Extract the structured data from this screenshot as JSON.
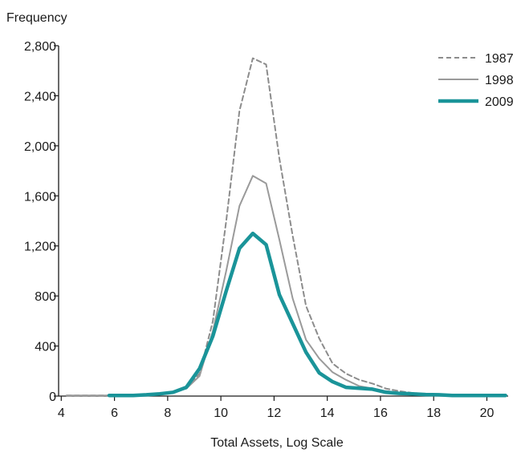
{
  "chart_data": {
    "type": "line",
    "ylabel": "Frequency",
    "xlabel": "Total Assets, Log Scale",
    "xlim": [
      3.9,
      20.8
    ],
    "ylim": [
      0,
      2800
    ],
    "x_ticks": [
      4,
      6,
      8,
      10,
      12,
      14,
      16,
      18,
      20
    ],
    "x_tick_labels": [
      "4",
      "6",
      "8",
      "10",
      "12",
      "14",
      "16",
      "18",
      "20"
    ],
    "y_ticks": [
      0,
      400,
      800,
      1200,
      1600,
      2000,
      2400,
      2800
    ],
    "y_tick_labels": [
      "0",
      "400",
      "800",
      "1,200",
      "1,600",
      "2,000",
      "2,400",
      "2,800"
    ],
    "grid": false,
    "legend": {
      "position": "top-right"
    },
    "series": [
      {
        "name": "1987",
        "style": "dashed",
        "color": "#8c8c8c",
        "x": [
          4.2,
          4.7,
          5.2,
          5.7,
          6.2,
          6.7,
          7.2,
          7.7,
          8.2,
          8.7,
          9.2,
          9.7,
          10.2,
          10.7,
          11.2,
          11.7,
          12.2,
          12.7,
          13.2,
          13.7,
          14.2,
          14.7,
          15.2,
          15.7,
          16.2,
          16.7,
          17.2,
          17.7,
          18.2,
          18.7,
          19.2,
          19.7,
          20.2,
          20.7
        ],
        "y": [
          5,
          5,
          5,
          5,
          5,
          5,
          10,
          15,
          30,
          60,
          180,
          600,
          1400,
          2280,
          2700,
          2650,
          1900,
          1280,
          720,
          460,
          260,
          180,
          130,
          100,
          60,
          40,
          25,
          18,
          12,
          8,
          5,
          5,
          5,
          5
        ]
      },
      {
        "name": "1998",
        "style": "solid",
        "color": "#9a9a9a",
        "x": [
          4.2,
          4.7,
          5.2,
          5.7,
          6.2,
          6.7,
          7.2,
          7.7,
          8.2,
          8.7,
          9.2,
          9.7,
          10.2,
          10.7,
          11.2,
          11.7,
          12.2,
          12.7,
          13.2,
          13.7,
          14.2,
          14.7,
          15.2,
          15.7,
          16.2,
          16.7,
          17.2,
          17.7,
          18.2,
          18.7,
          19.2,
          19.7,
          20.2,
          20.7
        ],
        "y": [
          5,
          5,
          5,
          5,
          5,
          5,
          10,
          15,
          30,
          60,
          160,
          520,
          1000,
          1520,
          1760,
          1700,
          1250,
          780,
          450,
          300,
          190,
          130,
          80,
          60,
          40,
          28,
          20,
          15,
          10,
          6,
          5,
          5,
          5,
          5
        ]
      },
      {
        "name": "2009",
        "style": "thick",
        "color": "#1a9499",
        "x": [
          5.8,
          6.2,
          6.7,
          7.2,
          7.7,
          8.2,
          8.7,
          9.2,
          9.7,
          10.2,
          10.7,
          11.2,
          11.7,
          12.2,
          12.7,
          13.2,
          13.7,
          14.2,
          14.7,
          15.2,
          15.7,
          16.2,
          16.7,
          17.2,
          17.7,
          18.2,
          18.7,
          19.2,
          19.7,
          20.2,
          20.7
        ],
        "y": [
          5,
          5,
          5,
          10,
          18,
          30,
          70,
          220,
          480,
          840,
          1180,
          1300,
          1210,
          810,
          580,
          350,
          185,
          115,
          70,
          62,
          55,
          30,
          22,
          18,
          12,
          10,
          5,
          5,
          5,
          5,
          5
        ]
      }
    ]
  }
}
